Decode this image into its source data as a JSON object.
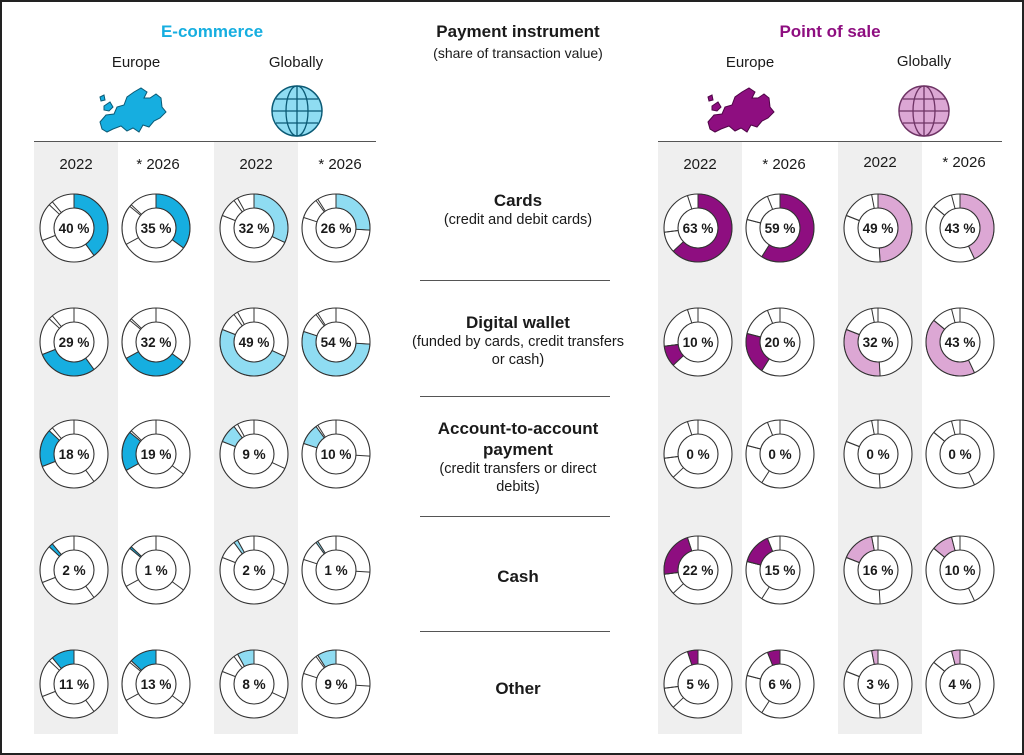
{
  "header": {
    "title": "Payment instrument",
    "subtitle": "(share of transaction value)"
  },
  "groups": [
    {
      "title": "E-commerce",
      "color": "#16aee0",
      "light": "#8fdcf2",
      "regions": [
        {
          "name": "Europe",
          "icon": "europe-map-icon"
        },
        {
          "name": "Globally",
          "icon": "globe-icon"
        }
      ]
    },
    {
      "title": "Point of sale",
      "color": "#8e0e80",
      "light": "#dca7d4",
      "regions": [
        {
          "name": "Europe",
          "icon": "europe-map-icon"
        },
        {
          "name": "Globally",
          "icon": "globe-icon"
        }
      ]
    }
  ],
  "years": [
    "2022",
    "* 2026"
  ],
  "categories": [
    {
      "title": "Cards",
      "subtitle": "(credit and debit cards)"
    },
    {
      "title": "Digital wallet",
      "subtitle": "(funded by cards, credit transfers or cash)"
    },
    {
      "title": "Account-to-account payment",
      "subtitle": "(credit transfers or direct debits)"
    },
    {
      "title": "Cash",
      "subtitle": ""
    },
    {
      "title": "Other",
      "subtitle": ""
    }
  ],
  "chart_data": {
    "type": "donut-grid",
    "title": "Payment instrument",
    "subtitle": "(share of transaction value)",
    "unit": "%",
    "categories": [
      "Cards",
      "Digital wallet",
      "Account-to-account payment",
      "Cash",
      "Other"
    ],
    "columns": [
      "E-commerce Europe 2022",
      "E-commerce Europe * 2026",
      "E-commerce Globally 2022",
      "E-commerce Globally * 2026",
      "Point of sale Europe 2022",
      "Point of sale Europe * 2026",
      "Point of sale Globally 2022",
      "Point of sale Globally * 2026"
    ],
    "series": [
      {
        "group": "E-commerce",
        "region": "Europe",
        "year": "2022",
        "values": [
          40,
          29,
          18,
          2,
          11
        ]
      },
      {
        "group": "E-commerce",
        "region": "Europe",
        "year": "* 2026",
        "values": [
          35,
          32,
          19,
          1,
          13
        ]
      },
      {
        "group": "E-commerce",
        "region": "Globally",
        "year": "2022",
        "values": [
          32,
          49,
          9,
          2,
          8
        ]
      },
      {
        "group": "E-commerce",
        "region": "Globally",
        "year": "* 2026",
        "values": [
          26,
          54,
          10,
          1,
          9
        ]
      },
      {
        "group": "Point of sale",
        "region": "Europe",
        "year": "2022",
        "values": [
          63,
          10,
          0,
          22,
          5
        ]
      },
      {
        "group": "Point of sale",
        "region": "Europe",
        "year": "* 2026",
        "values": [
          59,
          20,
          0,
          15,
          6
        ]
      },
      {
        "group": "Point of sale",
        "region": "Globally",
        "year": "2022",
        "values": [
          49,
          32,
          0,
          16,
          3
        ]
      },
      {
        "group": "Point of sale",
        "region": "Globally",
        "year": "* 2026",
        "values": [
          43,
          43,
          0,
          10,
          4
        ]
      }
    ]
  }
}
